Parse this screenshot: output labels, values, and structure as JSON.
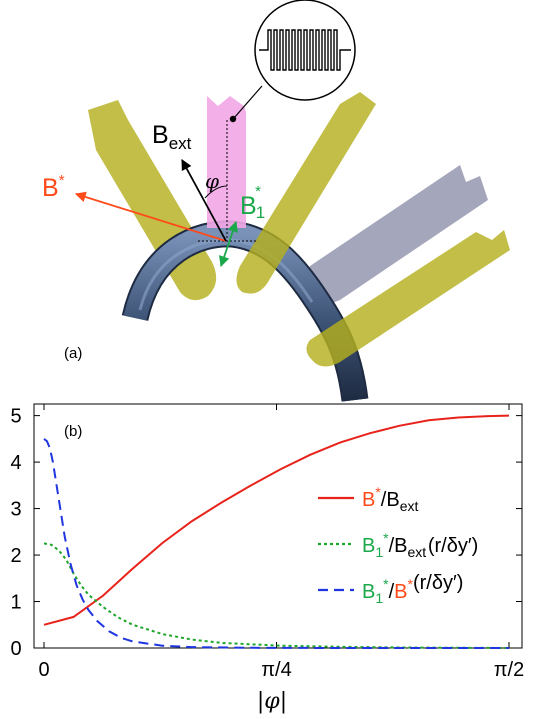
{
  "panel_a": {
    "panel_label": "(a)",
    "b_ext_main": "B",
    "b_ext_sub": "ext",
    "phi": "φ",
    "b_star_main": "B",
    "b_star_sup": "*",
    "b1_main": "B",
    "b1_sub": "1",
    "b1_sup": "*",
    "colors": {
      "b_star": "#ff4a1a",
      "b1": "#1aa84a",
      "gates": "#b5b01e",
      "gate_grey": "#9a9cb4",
      "nanowire": "#3f5679",
      "antenna": "#f2a7e6"
    }
  },
  "chart_data": {
    "type": "line",
    "panel_label": "(b)",
    "xlabel": "|φ|",
    "x_ticks": [
      "0",
      "π/4",
      "π/2"
    ],
    "x_tick_values": [
      0,
      0.7854,
      1.5708
    ],
    "xlim": [
      0,
      1.5708
    ],
    "y_ticks": [
      "0",
      "1",
      "2",
      "3",
      "4",
      "5"
    ],
    "ylim": [
      0,
      5.25
    ],
    "legend_position": "right",
    "series": [
      {
        "name": "B*/B_ext",
        "legend": {
          "a": "B",
          "a_sup": "*",
          "b": "/B",
          "b_sub": "ext",
          "c": ""
        },
        "color": "#e8231b",
        "dash": "solid",
        "x": [
          0,
          0.1,
          0.2,
          0.3,
          0.4,
          0.5,
          0.6,
          0.7,
          0.8,
          0.9,
          1.0,
          1.1,
          1.2,
          1.3,
          1.4,
          1.5,
          1.5708
        ],
        "y": [
          0.5,
          0.67,
          1.13,
          1.71,
          2.26,
          2.73,
          3.13,
          3.5,
          3.85,
          4.16,
          4.42,
          4.62,
          4.78,
          4.9,
          4.96,
          4.99,
          5.0
        ]
      },
      {
        "name": "B1*/B_ext(r/δy′)",
        "legend": {
          "a": "B",
          "a_sub": "1",
          "a_sup": "*",
          "b": "/B",
          "b_sub": "ext",
          "c": "(r/δy′)"
        },
        "color": "#1ea62b",
        "dash": "dotted",
        "x": [
          0,
          0.025,
          0.05,
          0.075,
          0.1,
          0.125,
          0.15,
          0.2,
          0.25,
          0.3,
          0.4,
          0.5,
          0.6,
          0.8,
          1.0,
          1.2,
          1.5708
        ],
        "y": [
          2.25,
          2.22,
          2.1,
          1.9,
          1.6,
          1.35,
          1.15,
          0.88,
          0.66,
          0.5,
          0.3,
          0.18,
          0.11,
          0.05,
          0.025,
          0.01,
          0.0
        ]
      },
      {
        "name": "B1*/B*(r/δy′)",
        "legend": {
          "a": "B",
          "a_sub": "1",
          "a_sup": "*",
          "b": "/B",
          "b_sup": "*",
          "c": "(r/δy′)"
        },
        "color": "#1f35e0",
        "dash": "dashed",
        "x": [
          0,
          0.01,
          0.02,
          0.03,
          0.05,
          0.07,
          0.09,
          0.11,
          0.13,
          0.15,
          0.18,
          0.22,
          0.26,
          0.3,
          0.4,
          0.5,
          0.7,
          1.0,
          1.5708
        ],
        "y": [
          4.5,
          4.45,
          4.3,
          4.0,
          3.2,
          2.4,
          1.8,
          1.35,
          1.05,
          0.82,
          0.58,
          0.36,
          0.22,
          0.14,
          0.05,
          0.02,
          0.005,
          0.0,
          0.0
        ]
      }
    ]
  }
}
